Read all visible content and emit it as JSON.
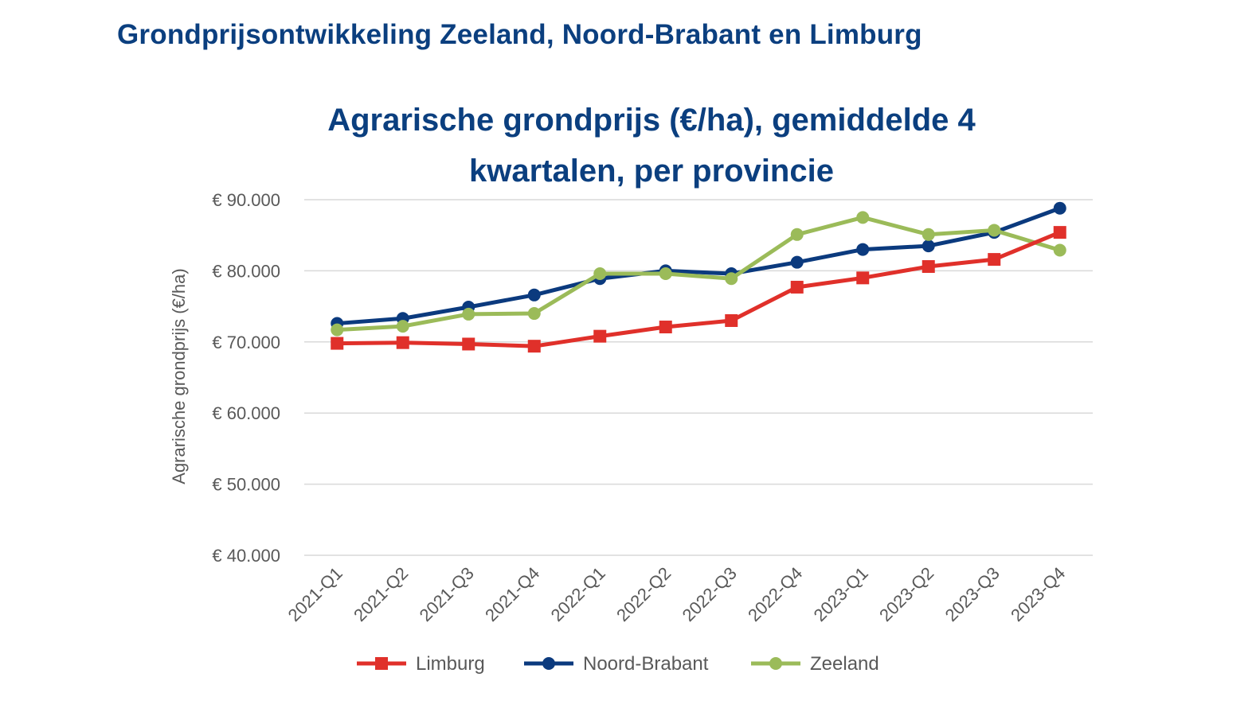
{
  "page": {
    "heading": "Grondprijsontwikkeling Zeeland, Noord-Brabant en Limburg"
  },
  "chart_data": {
    "type": "line",
    "title_lines": [
      "Agrarische grondprijs (€/ha), gemiddelde 4",
      "kwartalen, per provincie"
    ],
    "ylabel": "Agrarische grondprijs (€/ha)",
    "xlabel": "",
    "ylim": [
      40000,
      90000
    ],
    "yticks": [
      40000,
      50000,
      60000,
      70000,
      80000,
      90000
    ],
    "ytick_labels": [
      "€ 40.000",
      "€ 50.000",
      "€ 60.000",
      "€ 70.000",
      "€ 80.000",
      "€ 90.000"
    ],
    "grid": true,
    "legend_position": "bottom",
    "categories": [
      "2021-Q1",
      "2021-Q2",
      "2021-Q3",
      "2021-Q4",
      "2022-Q1",
      "2022-Q2",
      "2022-Q3",
      "2022-Q4",
      "2023-Q1",
      "2023-Q2",
      "2023-Q3",
      "2023-Q4"
    ],
    "series": [
      {
        "name": "Limburg",
        "color": "#e0302a",
        "marker": "square",
        "values": [
          69800,
          69900,
          69700,
          69400,
          70800,
          72100,
          73000,
          77700,
          79000,
          80600,
          81600,
          85400
        ]
      },
      {
        "name": "Noord-Brabant",
        "color": "#0b3a7e",
        "marker": "circle",
        "values": [
          72600,
          73300,
          74900,
          76600,
          78900,
          80000,
          79600,
          81200,
          83000,
          83500,
          85400,
          88800
        ]
      },
      {
        "name": "Zeeland",
        "color": "#9bbb59",
        "marker": "circle",
        "values": [
          71700,
          72200,
          73900,
          74000,
          79600,
          79600,
          78900,
          85100,
          87500,
          85100,
          85700,
          82900
        ]
      }
    ]
  }
}
